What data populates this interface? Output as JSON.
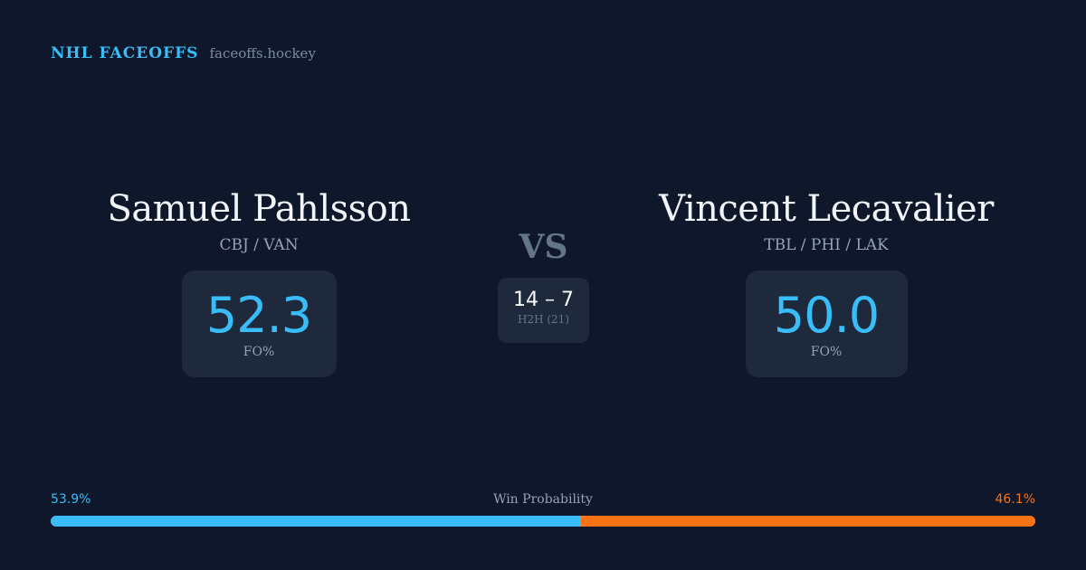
{
  "brand": {
    "title": "NHL FACEOFFS",
    "url": "faceoffs.hockey"
  },
  "player_a": {
    "name": "Samuel Pahlsson",
    "teams": "CBJ / VAN",
    "fo_pct": "52.3",
    "fo_label": "FO%"
  },
  "player_b": {
    "name": "Vincent Lecavalier",
    "teams": "TBL / PHI / LAK",
    "fo_pct": "50.0",
    "fo_label": "FO%"
  },
  "versus": {
    "label": "VS",
    "score": "14 – 7",
    "h2h_label": "H2H (21)"
  },
  "win_probability": {
    "label": "Win Probability",
    "a_text": "53.9%",
    "b_text": "46.1%",
    "a_value": 53.9,
    "b_value": 46.1,
    "a_color": "#38bdf8",
    "b_color": "#f97316"
  }
}
